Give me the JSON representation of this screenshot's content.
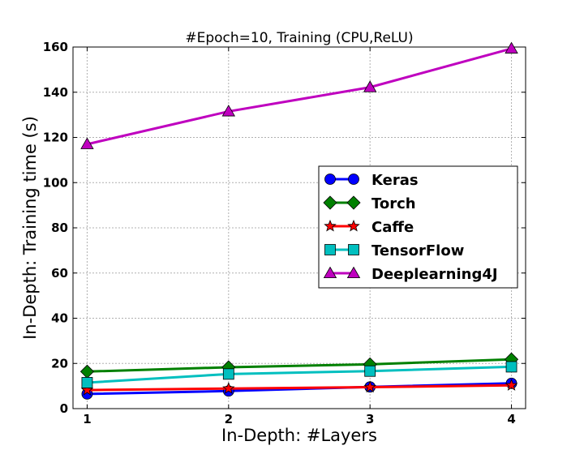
{
  "chart_data": {
    "type": "line",
    "title": "#Epoch=10, Training (CPU,ReLU)",
    "xlabel": "In-Depth: #Layers",
    "ylabel": "In-Depth: Training time (s)",
    "x": [
      1,
      2,
      3,
      4
    ],
    "x_ticks": [
      "1",
      "2",
      "3",
      "4"
    ],
    "xlim": [
      0.9,
      4.1
    ],
    "ylim": [
      0,
      160
    ],
    "y_ticks": [
      "0",
      "20",
      "40",
      "60",
      "80",
      "100",
      "120",
      "140",
      "160"
    ],
    "grid": true,
    "legend_position": "center-right",
    "series": [
      {
        "name": "Keras",
        "values": [
          6.5,
          7.8,
          9.6,
          11.2
        ],
        "color": "#0000ff",
        "marker": "circle"
      },
      {
        "name": "Torch",
        "values": [
          16.4,
          18.3,
          19.6,
          21.8
        ],
        "color": "#008000",
        "marker": "diamond"
      },
      {
        "name": "Caffe",
        "values": [
          8.2,
          8.9,
          9.5,
          10.3
        ],
        "color": "#ff0000",
        "marker": "star"
      },
      {
        "name": "TensorFlow",
        "values": [
          11.5,
          15.3,
          16.6,
          18.5
        ],
        "color": "#00bfbf",
        "marker": "square"
      },
      {
        "name": "Deeplearning4J",
        "values": [
          117,
          131.5,
          142.2,
          159.3
        ],
        "color": "#bf00bf",
        "marker": "triangle"
      }
    ]
  }
}
